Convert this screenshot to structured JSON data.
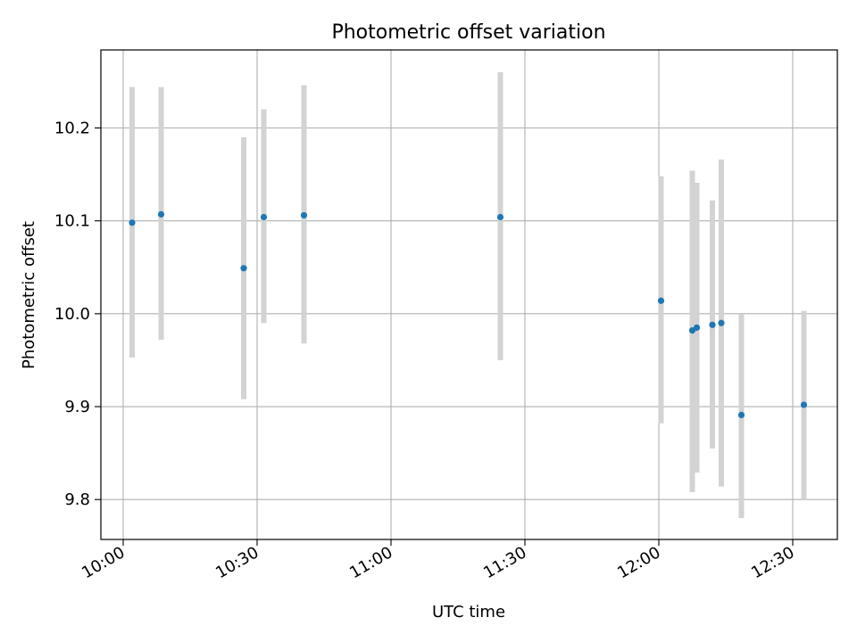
{
  "chart_data": {
    "type": "scatter",
    "title": "Photometric offset variation",
    "xlabel": "UTC time",
    "ylabel": "Photometric offset",
    "grid": true,
    "xlim": [
      "09:55",
      "12:40"
    ],
    "ylim": [
      9.757,
      10.284
    ],
    "x_ticks": [
      "10:00",
      "10:30",
      "11:00",
      "11:30",
      "12:00",
      "12:30"
    ],
    "y_ticks": [
      "9.8",
      "9.9",
      "10.0",
      "10.1",
      "10.2"
    ],
    "series": [
      {
        "marker_color": "#1f77b4",
        "errorbar_color": "#d3d3d3",
        "points": [
          {
            "t": "10:02",
            "y": 10.098,
            "ylo": 9.953,
            "yhi": 10.244
          },
          {
            "t": "10:08.5",
            "y": 10.107,
            "ylo": 9.972,
            "yhi": 10.244
          },
          {
            "t": "10:27",
            "y": 10.049,
            "ylo": 9.908,
            "yhi": 10.19
          },
          {
            "t": "10:31.5",
            "y": 10.104,
            "ylo": 9.99,
            "yhi": 10.22
          },
          {
            "t": "10:40.5",
            "y": 10.106,
            "ylo": 9.968,
            "yhi": 10.246
          },
          {
            "t": "11:24.5",
            "y": 10.104,
            "ylo": 9.95,
            "yhi": 10.26
          },
          {
            "t": "12:00.5",
            "y": 10.014,
            "ylo": 9.882,
            "yhi": 10.148
          },
          {
            "t": "12:07.5",
            "y": 9.982,
            "ylo": 9.808,
            "yhi": 10.154
          },
          {
            "t": "12:08.5",
            "y": 9.985,
            "ylo": 9.829,
            "yhi": 10.141
          },
          {
            "t": "12:12",
            "y": 9.988,
            "ylo": 9.855,
            "yhi": 10.122
          },
          {
            "t": "12:14",
            "y": 9.99,
            "ylo": 9.814,
            "yhi": 10.166
          },
          {
            "t": "12:18.5",
            "y": 9.891,
            "ylo": 9.78,
            "yhi": 10.0
          },
          {
            "t": "12:32.5",
            "y": 9.902,
            "ylo": 9.8,
            "yhi": 10.003
          }
        ]
      }
    ]
  }
}
